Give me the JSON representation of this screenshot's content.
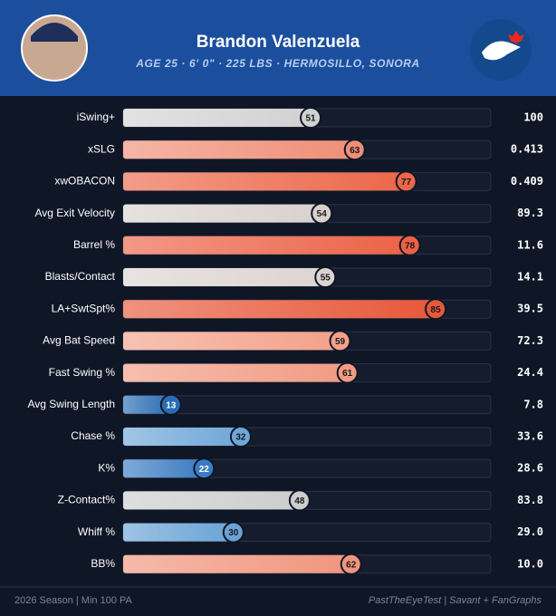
{
  "chart_data": {
    "type": "bar",
    "orientation": "horizontal",
    "title": "Brandon Valenzuela",
    "subtitle": "AGE 25 · 6' 0\" · 225 LBS · HERMOSILLO, SONORA",
    "xlim": [
      0,
      100
    ],
    "categories": [
      "iSwing+",
      "xSLG",
      "xwOBACON",
      "Avg Exit Velocity",
      "Barrel %",
      "Blasts/Contact",
      "LA+SwtSpt%",
      "Avg Bat Speed",
      "Fast Swing %",
      "Avg Swing Length",
      "Chase %",
      "K%",
      "Z-Contact%",
      "Whiff %",
      "BB%"
    ],
    "values": [
      51,
      63,
      77,
      54,
      78,
      55,
      85,
      59,
      61,
      13,
      32,
      22,
      48,
      30,
      62
    ],
    "colors": [
      "#d2d2d2",
      "#f08e76",
      "#ec6749",
      "#d9d1cd",
      "#eb6246",
      "#dcd4d0",
      "#e7583a",
      "#f3a189",
      "#f19b83",
      "#2a6cb3",
      "#6ea7d8",
      "#3a7cc1",
      "#cdcdcd",
      "#69a3d6",
      "#f0957d"
    ],
    "stats": [
      "100",
      "0.413",
      "0.409",
      "89.3",
      "11.6",
      "14.1",
      "39.5",
      "72.3",
      "24.4",
      "7.8",
      "33.6",
      "28.6",
      "83.8",
      "29.0",
      "10.0"
    ],
    "footer_left": "2026 Season | Min 100 PA",
    "footer_right": "PastTheEyeTest | Savant + FanGraphs"
  }
}
